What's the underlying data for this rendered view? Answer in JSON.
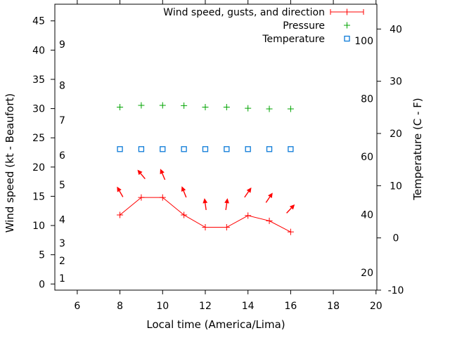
{
  "figure": {
    "background": "#ffffff",
    "axis_color": "#000000"
  },
  "legend": {
    "position": "top-right-inside",
    "items": [
      {
        "label": "Wind speed, gusts, and direction",
        "glyph": "errorbar",
        "color": "#ff0000"
      },
      {
        "label": "Pressure",
        "glyph": "plus",
        "color": "#00a400"
      },
      {
        "label": "Temperature",
        "glyph": "square",
        "color": "#0b7ad8"
      }
    ]
  },
  "chart_data": {
    "type": "line",
    "x": [
      8,
      9,
      10,
      11,
      12,
      13,
      14,
      15,
      16
    ],
    "series": [
      {
        "name": "Wind speed, gusts, and direction",
        "axis": "wind",
        "color": "#ff0000",
        "marker": "plus",
        "line": true,
        "values": [
          11.8,
          14.8,
          14.8,
          11.8,
          9.7,
          9.7,
          11.7,
          10.8,
          8.9
        ],
        "direction_arrows_deg": [
          -30,
          -40,
          -23,
          -22,
          -8,
          8,
          35,
          34,
          43
        ]
      },
      {
        "name": "Pressure",
        "axis": "wind",
        "color": "#00a400",
        "marker": "plus",
        "line": false,
        "values": [
          30.25,
          30.55,
          30.55,
          30.5,
          30.25,
          30.25,
          30.05,
          29.95,
          29.95
        ]
      },
      {
        "name": "Temperature",
        "axis": "celsius",
        "color": "#0b7ad8",
        "marker": "square",
        "line": false,
        "values": [
          17,
          17,
          17,
          17,
          17,
          17,
          17,
          17,
          17
        ]
      }
    ],
    "axes": {
      "x": {
        "label": "Local time (America/Lima)",
        "ticks": [
          6,
          8,
          10,
          12,
          14,
          16,
          18,
          20
        ],
        "range": [
          4.95,
          20.04
        ]
      },
      "wind": {
        "label": "Wind speed (kt - Beaufort)",
        "ticks": [
          0,
          5,
          10,
          15,
          20,
          25,
          30,
          35,
          40,
          45
        ],
        "range": [
          -1.05,
          47.85
        ]
      },
      "beaufort_labels": [
        {
          "n": "1",
          "kt": 1
        },
        {
          "n": "2",
          "kt": 4
        },
        {
          "n": "3",
          "kt": 7
        },
        {
          "n": "4",
          "kt": 11
        },
        {
          "n": "5",
          "kt": 17
        },
        {
          "n": "6",
          "kt": 22
        },
        {
          "n": "7",
          "kt": 28
        },
        {
          "n": "8",
          "kt": 34
        },
        {
          "n": "9",
          "kt": 41
        }
      ],
      "celsius": {
        "label": "Temperature (C - F)",
        "ticks": [
          -10,
          0,
          10,
          20,
          30,
          40
        ],
        "range": [
          -10,
          44.75
        ]
      },
      "fahrenheit_labels": [
        {
          "f": 20
        },
        {
          "f": 40
        },
        {
          "f": 60
        },
        {
          "f": 80
        },
        {
          "f": 100
        }
      ],
      "grid": false
    }
  }
}
